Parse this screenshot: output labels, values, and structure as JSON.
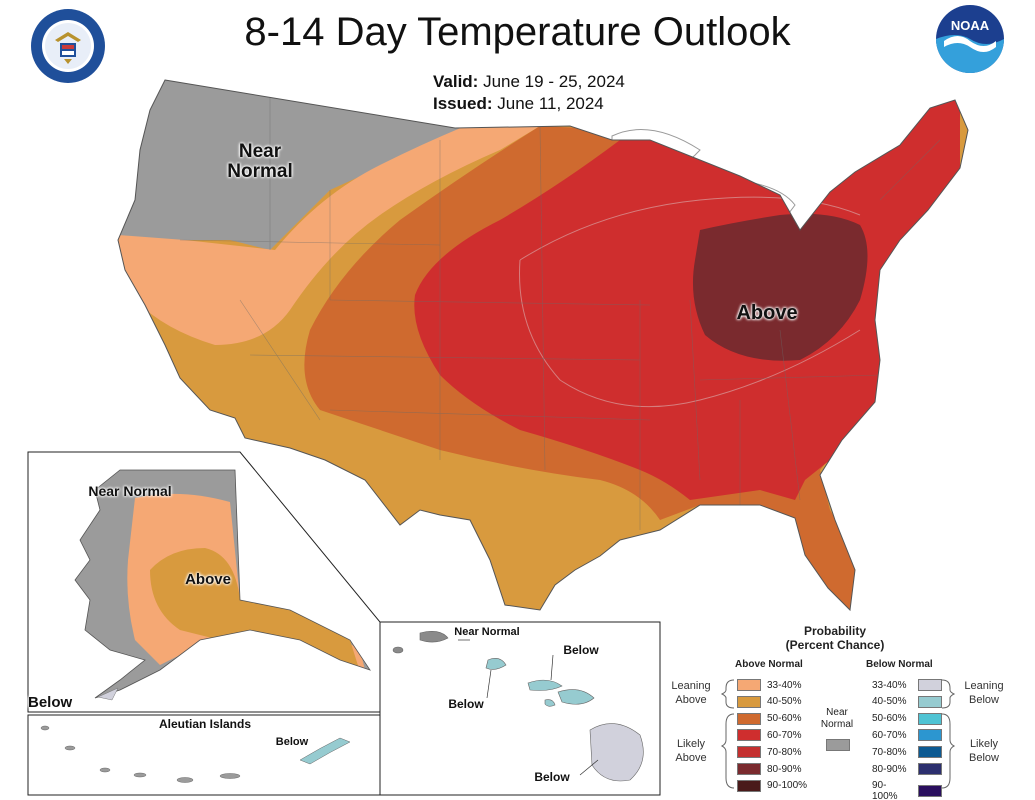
{
  "header": {
    "title": "8-14 Day Temperature Outlook",
    "valid_label": "Valid:",
    "valid_value": "June 19 - 25, 2024",
    "issued_label": "Issued:",
    "issued_value": "June 11, 2024",
    "logo_left_icon": "commerce-seal",
    "logo_right_icon": "noaa-logo",
    "logo_right_text": "NOAA"
  },
  "map_labels": {
    "conus_near_normal": "Near Normal",
    "conus_above": "Above",
    "alaska_near_normal": "Near Normal",
    "alaska_above": "Above",
    "alaska_below": "Below",
    "aleutian_title": "Aleutian Islands",
    "aleutian_below": "Below",
    "hawaii_near_normal": "Near Normal",
    "hawaii_below_east": "Below",
    "hawaii_below_oahu": "Below",
    "hawaii_below_big": "Below"
  },
  "colors": {
    "near_normal": "#9b9b9b",
    "above_33_40": "#f5a874",
    "above_40_50": "#d89a3e",
    "above_50_60": "#cf6a2f",
    "above_60_70": "#cf2e2e",
    "above_70_80": "#c4302f",
    "above_80_90": "#7a2a2e",
    "above_90_100": "#4a1a1a",
    "below_33_40": "#d1d1dc",
    "below_40_50": "#96cbd0",
    "below_50_60": "#4fc3d3",
    "below_60_70": "#2c96d0",
    "below_70_80": "#0d5a92",
    "below_80_90": "#2c2f6e",
    "below_90_100": "#2a0f5e"
  },
  "legend": {
    "title": "Probability",
    "subtitle": "(Percent Chance)",
    "above_header": "Above Normal",
    "below_header": "Below Normal",
    "near_normal_label": "Near Normal",
    "leaning_above": "Leaning Above",
    "likely_above": "Likely Above",
    "leaning_below": "Leaning Below",
    "likely_below": "Likely Below",
    "above_items": [
      {
        "label": "33-40%",
        "color": "#f5a874"
      },
      {
        "label": "40-50%",
        "color": "#d89a3e"
      },
      {
        "label": "50-60%",
        "color": "#cf6a2f"
      },
      {
        "label": "60-70%",
        "color": "#cf2e2e"
      },
      {
        "label": "70-80%",
        "color": "#c4302f"
      },
      {
        "label": "80-90%",
        "color": "#7a2a2e"
      },
      {
        "label": "90-100%",
        "color": "#4a1a1a"
      }
    ],
    "below_items": [
      {
        "label": "33-40%",
        "color": "#d1d1dc"
      },
      {
        "label": "40-50%",
        "color": "#96cbd0"
      },
      {
        "label": "50-60%",
        "color": "#4fc3d3"
      },
      {
        "label": "60-70%",
        "color": "#2c96d0"
      },
      {
        "label": "70-80%",
        "color": "#0d5a92"
      },
      {
        "label": "80-90%",
        "color": "#2c2f6e"
      },
      {
        "label": "90-100%",
        "color": "#2a0f5e"
      }
    ]
  }
}
